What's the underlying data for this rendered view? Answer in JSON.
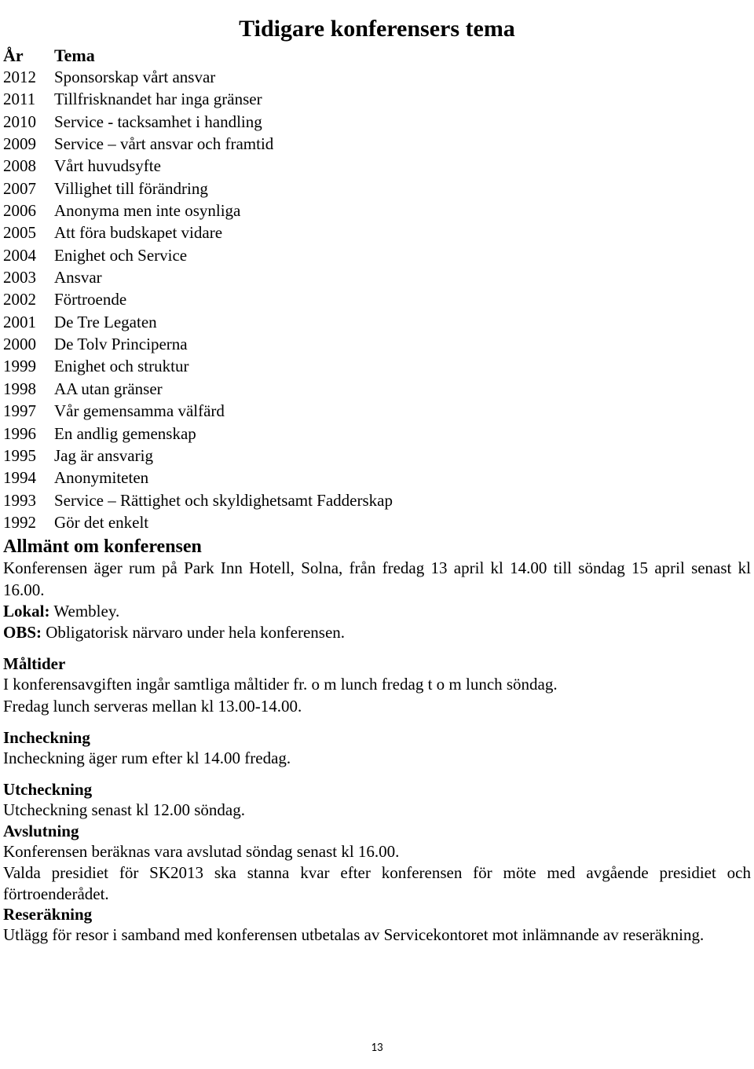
{
  "title": "Tidigare konferensers tema",
  "table_header": {
    "col1": "År",
    "col2": "Tema"
  },
  "rows": [
    {
      "year": "2012",
      "tema": "Sponsorskap vårt ansvar"
    },
    {
      "year": "2011",
      "tema": "Tillfrisknandet har inga gränser"
    },
    {
      "year": "2010",
      "tema": "Service - tacksamhet i handling"
    },
    {
      "year": "2009",
      "tema": "Service – vårt ansvar och framtid"
    },
    {
      "year": "2008",
      "tema": "Vårt huvudsyfte"
    },
    {
      "year": "2007",
      "tema": "Villighet till förändring"
    },
    {
      "year": "2006",
      "tema": "Anonyma men inte osynliga"
    },
    {
      "year": "2005",
      "tema": "Att föra budskapet vidare"
    },
    {
      "year": "2004",
      "tema": "Enighet och Service"
    },
    {
      "year": "2003",
      "tema": "Ansvar"
    },
    {
      "year": "2002",
      "tema": "Förtroende"
    },
    {
      "year": "2001",
      "tema": "De Tre Legaten"
    },
    {
      "year": "2000",
      "tema": "De Tolv Principerna"
    },
    {
      "year": "1999",
      "tema": "Enighet och struktur"
    },
    {
      "year": "1998",
      "tema": "AA utan gränser"
    },
    {
      "year": "1997",
      "tema": "Vår gemensamma välfärd"
    },
    {
      "year": "1996",
      "tema": "En andlig gemenskap"
    },
    {
      "year": "1995",
      "tema": "Jag är ansvarig"
    },
    {
      "year": "1994",
      "tema": "Anonymiteten"
    },
    {
      "year": "1993",
      "tema": "Service – Rättighet och skyldighetsamt Fadderskap"
    },
    {
      "year": "1992",
      "tema": "Gör det enkelt"
    }
  ],
  "sections": {
    "allmant_heading": "Allmänt om konferensen",
    "allmant_p1": "Konferensen äger rum på Park Inn Hotell, Solna, från fredag 13 april kl 14.00 till söndag 15 april senast kl 16.00.",
    "lokal_label": "Lokal:",
    "lokal_value": " Wembley.",
    "obs_label": "OBS:",
    "obs_value": " Obligatorisk närvaro under hela konferensen.",
    "maltider_heading": "Måltider",
    "maltider_p1": "I konferensavgiften ingår samtliga måltider fr. o m lunch fredag t o m lunch söndag.",
    "maltider_p2": "Fredag lunch serveras mellan kl 13.00-14.00.",
    "incheckning_heading": "Incheckning",
    "incheckning_p1": "Incheckning äger rum efter kl 14.00 fredag.",
    "utcheckning_heading": "Utcheckning",
    "utcheckning_p1": "Utcheckning senast kl 12.00 söndag.",
    "avslutning_heading": "Avslutning",
    "avslutning_p1": "Konferensen beräknas vara avslutad söndag senast kl 16.00.",
    "avslutning_p2": "Valda presidiet för SK2013 ska stanna kvar efter konferensen för möte med avgående presidiet och förtroenderådet.",
    "reserakning_heading": "Reseräkning",
    "reserakning_p1": "Utlägg för resor i samband med konferensen utbetalas av Servicekontoret mot inlämnande av reseräkning."
  },
  "page_number": "13"
}
